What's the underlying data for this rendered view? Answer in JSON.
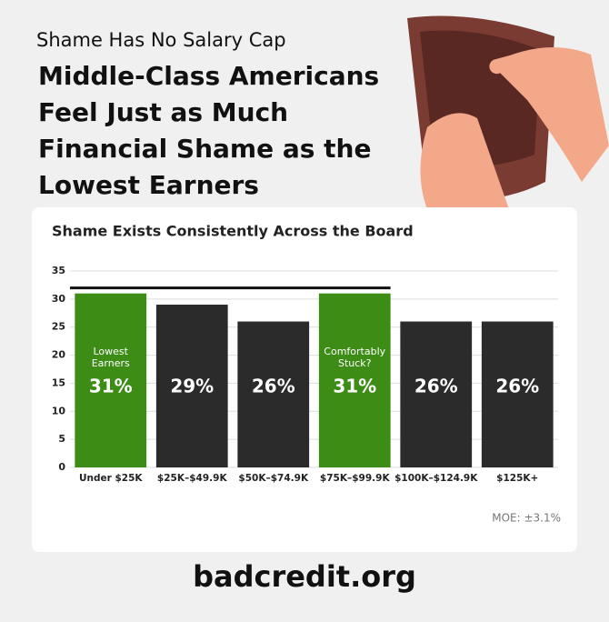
{
  "header": {
    "subtitle": "Shame Has No Salary Cap",
    "title": "Middle-Class Americans Feel Just as Much Financial Shame as the Lowest Earners"
  },
  "chart_data": {
    "type": "bar",
    "title": "Shame Exists Consistently Across the Board",
    "categories": [
      "Under $25K",
      "$25K–$49.9K",
      "$50K–$74.9K",
      "$75K–$99.9K",
      "$100K–$124.9K",
      "$125K+"
    ],
    "values": [
      31,
      29,
      26,
      31,
      26,
      26
    ],
    "value_labels": [
      "31%",
      "29%",
      "26%",
      "31%",
      "26%",
      "26%"
    ],
    "colors": [
      "#3c8c16",
      "#2b2b2b",
      "#2b2b2b",
      "#3c8c16",
      "#2b2b2b",
      "#2b2b2b"
    ],
    "annotations": [
      "Lowest Earners",
      null,
      null,
      "Comfortably Stuck?",
      null,
      null
    ],
    "ylim": [
      0,
      35
    ],
    "yticks": [
      0,
      5,
      10,
      15,
      20,
      25,
      30,
      35
    ],
    "grid": true,
    "note": "MOE: ±3.1%"
  },
  "footer": {
    "logo": "badcredit.org"
  }
}
